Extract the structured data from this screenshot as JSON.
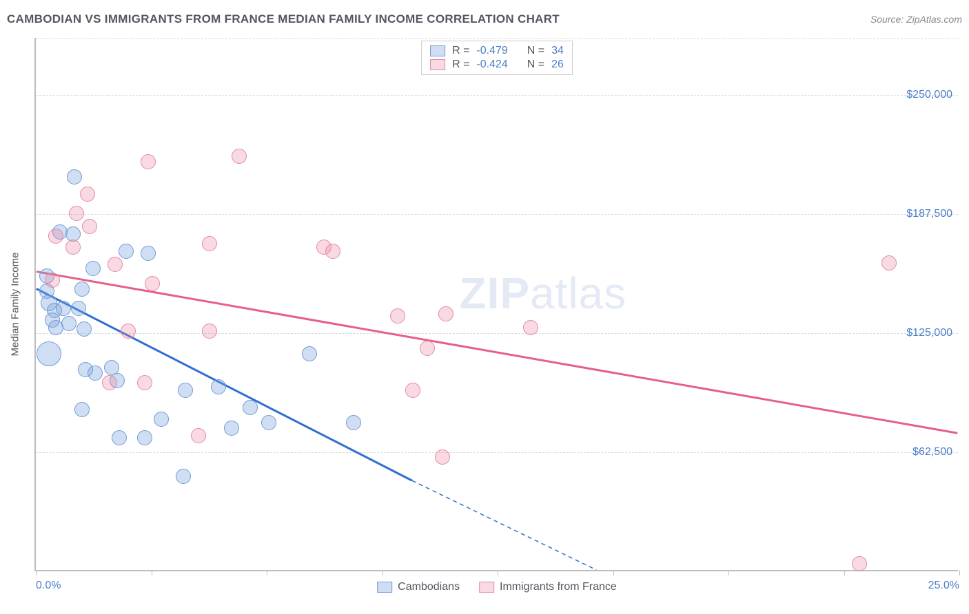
{
  "header": {
    "title": "CAMBODIAN VS IMMIGRANTS FROM FRANCE MEDIAN FAMILY INCOME CORRELATION CHART",
    "source": "Source: ZipAtlas.com"
  },
  "watermark": {
    "part1": "ZIP",
    "part2": "atlas"
  },
  "chart": {
    "type": "scatter",
    "yaxis_title": "Median Family Income",
    "xlim": [
      0,
      25
    ],
    "ylim": [
      0,
      280000
    ],
    "background_color": "#ffffff",
    "grid_color": "#dcdcdc",
    "axis_color": "#bdbdbd",
    "tick_label_color": "#4a7ec9",
    "tick_label_fontsize": 16,
    "y_gridlines": [
      62500,
      125000,
      187500,
      250000,
      280000
    ],
    "y_tick_labels": {
      "62500": "$62,500",
      "125000": "$125,000",
      "187500": "$187,500",
      "250000": "$250,000"
    },
    "x_ticks": [
      0,
      3.125,
      6.25,
      9.375,
      12.5,
      15.625,
      18.75,
      21.875,
      25
    ],
    "x_labels": {
      "0": "0.0%",
      "25": "25.0%"
    },
    "series": [
      {
        "name": "Cambodians",
        "fill_color": "rgba(120,160,220,0.35)",
        "stroke_color": "#6f9cd6",
        "trend_color": "#2e6fd1",
        "trend_width": 3,
        "trend": {
          "x1": 0,
          "y1": 148000,
          "x2_solid": 10.2,
          "y2_solid": 47000,
          "x2_dash": 15.2,
          "y2_dash": 0
        },
        "R": "-0.479",
        "N": "34",
        "points": [
          {
            "x": 1.05,
            "y": 207000,
            "r": 11
          },
          {
            "x": 0.65,
            "y": 178000,
            "r": 11
          },
          {
            "x": 1.0,
            "y": 177000,
            "r": 11
          },
          {
            "x": 1.55,
            "y": 159000,
            "r": 11
          },
          {
            "x": 2.45,
            "y": 168000,
            "r": 11
          },
          {
            "x": 3.05,
            "y": 167000,
            "r": 11
          },
          {
            "x": 1.25,
            "y": 148000,
            "r": 11
          },
          {
            "x": 0.3,
            "y": 147000,
            "r": 11
          },
          {
            "x": 0.35,
            "y": 141000,
            "r": 12
          },
          {
            "x": 0.5,
            "y": 137000,
            "r": 11
          },
          {
            "x": 0.75,
            "y": 138000,
            "r": 11
          },
          {
            "x": 1.15,
            "y": 138000,
            "r": 11
          },
          {
            "x": 0.45,
            "y": 132000,
            "r": 11
          },
          {
            "x": 0.55,
            "y": 128000,
            "r": 11
          },
          {
            "x": 1.3,
            "y": 127000,
            "r": 11
          },
          {
            "x": 1.35,
            "y": 106000,
            "r": 11
          },
          {
            "x": 1.6,
            "y": 104000,
            "r": 11
          },
          {
            "x": 2.2,
            "y": 100000,
            "r": 11
          },
          {
            "x": 1.25,
            "y": 85000,
            "r": 11
          },
          {
            "x": 2.25,
            "y": 70000,
            "r": 11
          },
          {
            "x": 2.95,
            "y": 70000,
            "r": 11
          },
          {
            "x": 3.4,
            "y": 80000,
            "r": 11
          },
          {
            "x": 4.05,
            "y": 95000,
            "r": 11
          },
          {
            "x": 4.95,
            "y": 97000,
            "r": 11
          },
          {
            "x": 5.8,
            "y": 86000,
            "r": 11
          },
          {
            "x": 4.0,
            "y": 50000,
            "r": 11
          },
          {
            "x": 5.3,
            "y": 75000,
            "r": 11
          },
          {
            "x": 6.3,
            "y": 78000,
            "r": 11
          },
          {
            "x": 7.4,
            "y": 114000,
            "r": 11
          },
          {
            "x": 8.6,
            "y": 78000,
            "r": 11
          },
          {
            "x": 0.35,
            "y": 114000,
            "r": 18
          },
          {
            "x": 0.3,
            "y": 155000,
            "r": 11
          },
          {
            "x": 0.9,
            "y": 130000,
            "r": 11
          },
          {
            "x": 2.05,
            "y": 107000,
            "r": 11
          }
        ]
      },
      {
        "name": "Immigrants from France",
        "fill_color": "rgba(235,130,160,0.30)",
        "stroke_color": "#e48aa4",
        "trend_color": "#e65f87",
        "trend_width": 3,
        "trend": {
          "x1": 0,
          "y1": 157000,
          "x2_solid": 25,
          "y2_solid": 72000,
          "x2_dash": 25,
          "y2_dash": 72000
        },
        "R": "-0.424",
        "N": "26",
        "points": [
          {
            "x": 3.05,
            "y": 215000,
            "r": 11
          },
          {
            "x": 5.5,
            "y": 218000,
            "r": 11
          },
          {
            "x": 1.4,
            "y": 198000,
            "r": 11
          },
          {
            "x": 1.1,
            "y": 188000,
            "r": 11
          },
          {
            "x": 1.45,
            "y": 181000,
            "r": 11
          },
          {
            "x": 0.45,
            "y": 153000,
            "r": 11
          },
          {
            "x": 4.7,
            "y": 172000,
            "r": 11
          },
          {
            "x": 2.15,
            "y": 161000,
            "r": 11
          },
          {
            "x": 3.15,
            "y": 151000,
            "r": 11
          },
          {
            "x": 2.5,
            "y": 126000,
            "r": 11
          },
          {
            "x": 4.7,
            "y": 126000,
            "r": 11
          },
          {
            "x": 2.0,
            "y": 99000,
            "r": 11
          },
          {
            "x": 2.95,
            "y": 99000,
            "r": 11
          },
          {
            "x": 4.4,
            "y": 71000,
            "r": 11
          },
          {
            "x": 7.8,
            "y": 170000,
            "r": 11
          },
          {
            "x": 8.05,
            "y": 168000,
            "r": 11
          },
          {
            "x": 9.8,
            "y": 134000,
            "r": 11
          },
          {
            "x": 11.1,
            "y": 135000,
            "r": 11
          },
          {
            "x": 10.6,
            "y": 117000,
            "r": 11
          },
          {
            "x": 10.2,
            "y": 95000,
            "r": 11
          },
          {
            "x": 13.4,
            "y": 128000,
            "r": 11
          },
          {
            "x": 11.0,
            "y": 60000,
            "r": 11
          },
          {
            "x": 23.1,
            "y": 162000,
            "r": 11
          },
          {
            "x": 22.3,
            "y": 4000,
            "r": 11
          },
          {
            "x": 1.0,
            "y": 170000,
            "r": 11
          },
          {
            "x": 0.55,
            "y": 176000,
            "r": 11
          }
        ]
      }
    ]
  },
  "stats_labels": {
    "R": "R =",
    "N": "N ="
  },
  "legend_labels": {
    "series1": "Cambodians",
    "series2": "Immigrants from France"
  }
}
